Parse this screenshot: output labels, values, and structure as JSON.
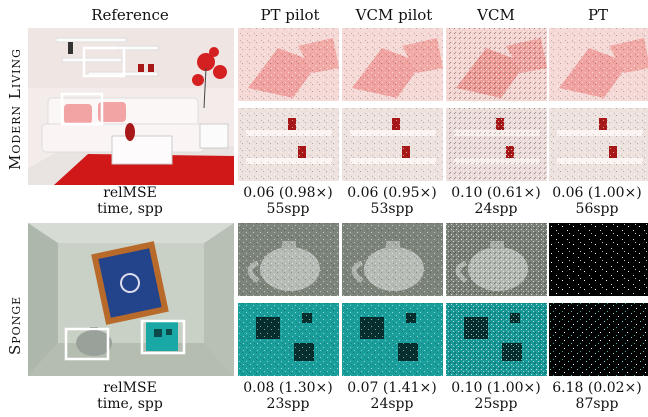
{
  "headers": [
    "Reference",
    "PT pilot",
    "VCM pilot",
    "VCM",
    "PT"
  ],
  "rows": [
    {
      "label": "Modern Living",
      "metric_label": "relMSE",
      "time_label": "time, spp",
      "values": [
        "0.06 (0.98×)",
        "0.06 (0.95×)",
        "0.10 (0.61×)",
        "0.06 (1.00×)"
      ],
      "spp": [
        "55spp",
        "53spp",
        "24spp",
        "56spp"
      ]
    },
    {
      "label": "Sponge",
      "metric_label": "relMSE",
      "time_label": "time, spp",
      "values": [
        "0.08 (1.30×)",
        "0.07 (1.41×)",
        "0.10 (1.00×)",
        "6.18 (0.02×)"
      ],
      "spp": [
        "23spp",
        "24spp",
        "25spp",
        "87spp"
      ]
    }
  ],
  "colors": {
    "pillow": "#f2a4a4",
    "living_floor": "#d01818",
    "sponge_teal": "#1aa8a6",
    "sponge_wall": "#c9d1c6"
  }
}
